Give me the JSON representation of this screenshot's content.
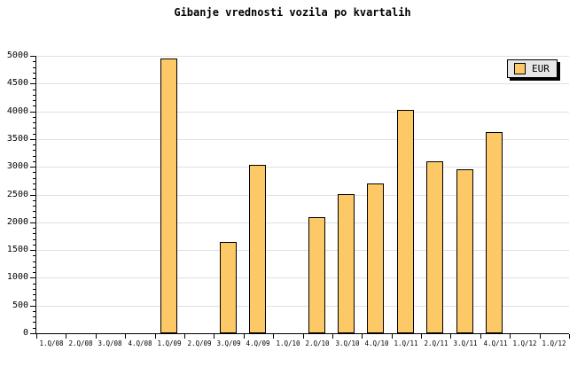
{
  "title": "Gibanje vrednosti vozila po kvartalih",
  "legend": {
    "label": "EUR",
    "swatch_color": "#fdc866",
    "position": "top-right"
  },
  "colors": {
    "bar_fill": "#fdc866",
    "bar_border": "#000000",
    "grid": "#e0e0e0",
    "axis": "#000000",
    "background": "#ffffff",
    "legend_background": "#e6e6e6"
  },
  "chart_data": {
    "type": "bar",
    "title": "Gibanje vrednosti vozila po kvartalih",
    "xlabel": "",
    "ylabel": "",
    "categories": [
      "1.Q/08",
      "2.Q/08",
      "3.Q/08",
      "4.Q/08",
      "1.Q/09",
      "2.Q/09",
      "3.Q/09",
      "4.Q/09",
      "1.Q/10",
      "2.Q/10",
      "3.Q/10",
      "4.Q/10",
      "1.Q/11",
      "2.Q/11",
      "3.Q/11",
      "4.Q/11",
      "1.Q/12",
      "1.Q/12"
    ],
    "series": [
      {
        "name": "EUR",
        "values": [
          0,
          0,
          0,
          0,
          4960,
          0,
          1640,
          3030,
          0,
          2090,
          2510,
          2700,
          4020,
          3100,
          2950,
          3620,
          0,
          0
        ]
      }
    ],
    "ylim": [
      0,
      5000
    ],
    "y_tick_step": 500,
    "y_minor_tick_step": 100,
    "y_tick_labels": [
      "0",
      "500",
      "1000",
      "1500",
      "2000",
      "2500",
      "3000",
      "3500",
      "4000",
      "4500",
      "5000"
    ],
    "grid": "horizontal",
    "legend_position": "top-right"
  }
}
